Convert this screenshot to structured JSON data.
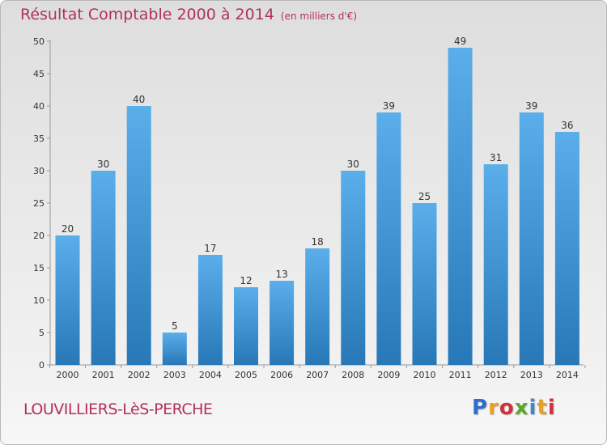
{
  "title": "Résultat Comptable 2000 à 2014",
  "subtitle": "(en milliers d'€)",
  "location": "LOUVILLIERS-LèS-PERCHE",
  "logo": "Proxiti",
  "colors": {
    "title": "#b03060",
    "bar_top": "#5aaeea",
    "bar_bottom": "#2878b8"
  },
  "chart_data": {
    "type": "bar",
    "categories": [
      "2000",
      "2001",
      "2002",
      "2003",
      "2004",
      "2005",
      "2006",
      "2007",
      "2008",
      "2009",
      "2010",
      "2011",
      "2012",
      "2013",
      "2014"
    ],
    "values": [
      20,
      30,
      40,
      5,
      17,
      12,
      13,
      18,
      30,
      39,
      25,
      49,
      31,
      39,
      36
    ],
    "title": "Résultat Comptable 2000 à 2014",
    "xlabel": "",
    "ylabel": "",
    "ylim": [
      0,
      50
    ],
    "yticks": [
      0,
      5,
      10,
      15,
      20,
      25,
      30,
      35,
      40,
      45,
      50
    ],
    "grid": false,
    "legend": "none"
  }
}
